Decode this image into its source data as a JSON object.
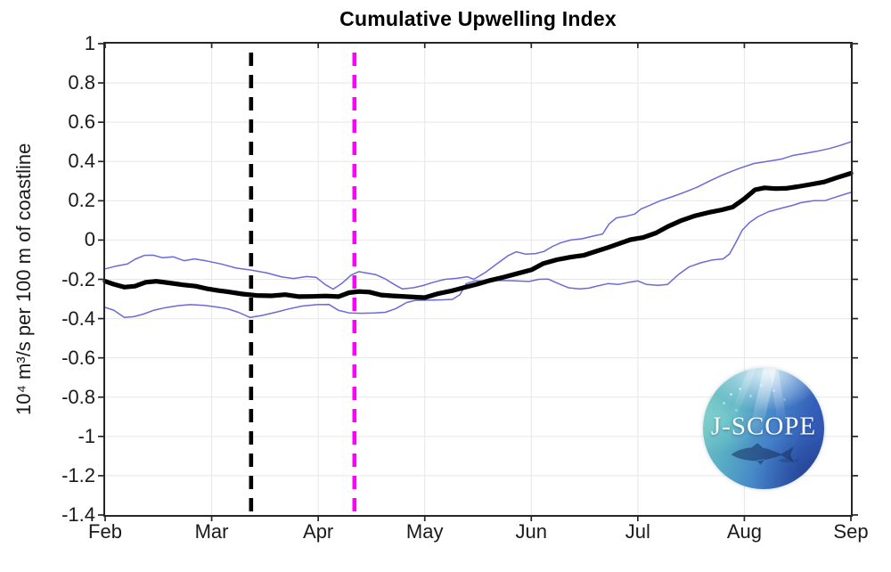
{
  "title": "Cumulative Upwelling Index",
  "axes": {
    "ylabel": "10⁴ m³/s per 100 m of coastline",
    "x_ticks": [
      {
        "label": "Feb",
        "month": 0
      },
      {
        "label": "Mar",
        "month": 1
      },
      {
        "label": "Apr",
        "month": 2
      },
      {
        "label": "May",
        "month": 3
      },
      {
        "label": "Jun",
        "month": 4
      },
      {
        "label": "Jul",
        "month": 5
      },
      {
        "label": "Aug",
        "month": 6
      },
      {
        "label": "Sep",
        "month": 7
      }
    ],
    "y_ticks": [
      {
        "label": "1",
        "value": 1
      },
      {
        "label": "0.8",
        "value": 0.8
      },
      {
        "label": "0.6",
        "value": 0.6
      },
      {
        "label": "0.4",
        "value": 0.4
      },
      {
        "label": "0.2",
        "value": 0.2
      },
      {
        "label": "0",
        "value": 0
      },
      {
        "label": "-0.2",
        "value": -0.2
      },
      {
        "label": "-0.4",
        "value": -0.4
      },
      {
        "label": "-0.6",
        "value": -0.6
      },
      {
        "label": "-0.8",
        "value": -0.8
      },
      {
        "label": "-1",
        "value": -1
      },
      {
        "label": "-1.2",
        "value": -1.2
      },
      {
        "label": "-1.4",
        "value": -1.4
      }
    ]
  },
  "colors": {
    "frame": "#262626",
    "grid": "#e7e7e7",
    "tick": "#262626",
    "mean_line": "#000000",
    "member_line": "#6a6ad8",
    "vline_black": "#000000",
    "vline_magenta": "#ff00ff"
  },
  "logo": {
    "text": "J-SCOPE"
  },
  "chart_data": {
    "type": "line",
    "title": "Cumulative Upwelling Index",
    "xlabel": "",
    "ylabel": "10^4 m^3/s per 100 m of coastline",
    "x_unit": "months (0 = Feb 1, 7 = Sep 1)",
    "xlim": [
      0,
      7
    ],
    "ylim": [
      -1.4,
      1
    ],
    "grid": true,
    "vlines": [
      {
        "name": "black-dashed-marker",
        "x": 1.37,
        "color": "#000000",
        "style": "dashed"
      },
      {
        "name": "magenta-dashed-marker",
        "x": 2.34,
        "color": "#ff00ff",
        "style": "dashed"
      }
    ],
    "series": [
      {
        "name": "upper-ensemble-member",
        "color": "#6a6ad8",
        "width": 1.5,
        "x": [
          0,
          0.1,
          0.21,
          0.28,
          0.37,
          0.45,
          0.54,
          0.64,
          0.74,
          0.84,
          0.95,
          1.09,
          1.23,
          1.37,
          1.52,
          1.66,
          1.77,
          1.89,
          1.98,
          2.07,
          2.14,
          2.22,
          2.31,
          2.38,
          2.47,
          2.54,
          2.63,
          2.72,
          2.79,
          2.89,
          2.98,
          3.08,
          3.19,
          3.3,
          3.4,
          3.46,
          3.57,
          3.68,
          3.78,
          3.86,
          3.95,
          4.04,
          4.12,
          4.2,
          4.28,
          4.37,
          4.48,
          4.58,
          4.67,
          4.73,
          4.8,
          4.89,
          4.97,
          5.03,
          5.11,
          5.21,
          5.33,
          5.45,
          5.56,
          5.67,
          5.79,
          5.88,
          5.96,
          6.09,
          6.21,
          6.34,
          6.46,
          6.56,
          6.68,
          6.8,
          6.9,
          7.0
        ],
        "y": [
          -0.147,
          -0.133,
          -0.122,
          -0.098,
          -0.078,
          -0.077,
          -0.09,
          -0.085,
          -0.105,
          -0.096,
          -0.106,
          -0.122,
          -0.143,
          -0.153,
          -0.168,
          -0.188,
          -0.196,
          -0.186,
          -0.19,
          -0.228,
          -0.25,
          -0.222,
          -0.178,
          -0.161,
          -0.169,
          -0.176,
          -0.198,
          -0.228,
          -0.249,
          -0.243,
          -0.232,
          -0.215,
          -0.2,
          -0.195,
          -0.187,
          -0.2,
          -0.164,
          -0.12,
          -0.08,
          -0.06,
          -0.072,
          -0.069,
          -0.058,
          -0.032,
          -0.013,
          0.0,
          0.007,
          0.02,
          0.031,
          0.082,
          0.113,
          0.121,
          0.132,
          0.158,
          0.176,
          0.2,
          0.222,
          0.246,
          0.27,
          0.3,
          0.33,
          0.35,
          0.366,
          0.39,
          0.4,
          0.411,
          0.431,
          0.44,
          0.452,
          0.466,
          0.482,
          0.5
        ]
      },
      {
        "name": "lower-ensemble-member",
        "color": "#6a6ad8",
        "width": 1.5,
        "x": [
          0,
          0.08,
          0.18,
          0.27,
          0.36,
          0.46,
          0.57,
          0.69,
          0.8,
          0.93,
          1.05,
          1.15,
          1.25,
          1.36,
          1.47,
          1.6,
          1.72,
          1.85,
          1.99,
          2.1,
          2.19,
          2.29,
          2.41,
          2.53,
          2.63,
          2.73,
          2.83,
          2.91,
          3.03,
          3.14,
          3.26,
          3.33,
          3.39,
          3.47,
          3.59,
          3.7,
          3.81,
          3.9,
          3.98,
          4.07,
          4.16,
          4.25,
          4.35,
          4.45,
          4.54,
          4.62,
          4.72,
          4.82,
          4.92,
          5.0,
          5.08,
          5.19,
          5.28,
          5.38,
          5.48,
          5.59,
          5.7,
          5.8,
          5.86,
          5.92,
          5.98,
          6.05,
          6.13,
          6.23,
          6.34,
          6.45,
          6.53,
          6.65,
          6.76,
          6.87,
          7.0
        ],
        "y": [
          -0.343,
          -0.357,
          -0.394,
          -0.39,
          -0.377,
          -0.357,
          -0.344,
          -0.334,
          -0.329,
          -0.333,
          -0.341,
          -0.35,
          -0.368,
          -0.394,
          -0.384,
          -0.368,
          -0.351,
          -0.336,
          -0.329,
          -0.328,
          -0.358,
          -0.371,
          -0.373,
          -0.371,
          -0.368,
          -0.349,
          -0.318,
          -0.307,
          -0.306,
          -0.305,
          -0.302,
          -0.278,
          -0.222,
          -0.208,
          -0.208,
          -0.206,
          -0.207,
          -0.209,
          -0.211,
          -0.2,
          -0.199,
          -0.221,
          -0.243,
          -0.249,
          -0.245,
          -0.234,
          -0.222,
          -0.226,
          -0.215,
          -0.208,
          -0.226,
          -0.231,
          -0.226,
          -0.176,
          -0.137,
          -0.116,
          -0.101,
          -0.096,
          -0.071,
          -0.012,
          0.05,
          0.09,
          0.12,
          0.145,
          0.161,
          0.176,
          0.19,
          0.2,
          0.201,
          0.221,
          0.243
        ]
      },
      {
        "name": "ensemble-mean",
        "color": "#000000",
        "width": 5.2,
        "x": [
          0,
          0.08,
          0.18,
          0.28,
          0.38,
          0.48,
          0.6,
          0.73,
          0.85,
          0.95,
          1.06,
          1.17,
          1.29,
          1.42,
          1.56,
          1.69,
          1.82,
          1.94,
          2.07,
          2.19,
          2.29,
          2.38,
          2.48,
          2.59,
          2.69,
          2.82,
          2.93,
          3.0,
          3.13,
          3.25,
          3.36,
          3.49,
          3.61,
          3.74,
          3.86,
          4.0,
          4.11,
          4.24,
          4.37,
          4.49,
          4.6,
          4.72,
          4.83,
          4.93,
          5.05,
          5.17,
          5.28,
          5.41,
          5.54,
          5.66,
          5.79,
          5.89,
          6.0,
          6.1,
          6.19,
          6.29,
          6.39,
          6.5,
          6.62,
          6.75,
          6.87,
          7.0
        ],
        "y": [
          -0.21,
          -0.225,
          -0.24,
          -0.235,
          -0.215,
          -0.21,
          -0.218,
          -0.228,
          -0.235,
          -0.247,
          -0.257,
          -0.265,
          -0.275,
          -0.282,
          -0.284,
          -0.278,
          -0.288,
          -0.287,
          -0.285,
          -0.288,
          -0.268,
          -0.262,
          -0.265,
          -0.28,
          -0.284,
          -0.288,
          -0.291,
          -0.293,
          -0.272,
          -0.259,
          -0.243,
          -0.225,
          -0.206,
          -0.189,
          -0.172,
          -0.152,
          -0.12,
          -0.1,
          -0.087,
          -0.078,
          -0.059,
          -0.038,
          -0.017,
          0.002,
          0.013,
          0.036,
          0.068,
          0.1,
          0.124,
          0.14,
          0.154,
          0.168,
          0.21,
          0.256,
          0.266,
          0.262,
          0.263,
          0.272,
          0.283,
          0.296,
          0.318,
          0.34
        ]
      }
    ]
  }
}
